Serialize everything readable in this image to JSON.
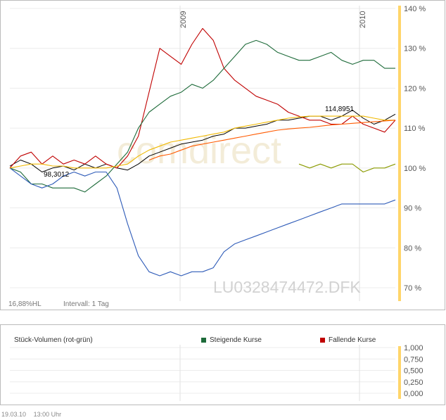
{
  "chart_data": [
    {
      "type": "line",
      "title": "",
      "x_labels": [
        "2009",
        "2010"
      ],
      "y_ticks": [
        "140 %",
        "130 %",
        "120 %",
        "110 %",
        "100 %",
        "90 %",
        "80 %",
        "70 %"
      ],
      "ylim": [
        67,
        140
      ],
      "grid": true,
      "symbol": "LU0328474472.DFK",
      "watermark": "comdirect",
      "range_label": "16,88%HL",
      "interval_label": "Intervall: 1 Tag",
      "annotations": {
        "high": "114,8951",
        "low": "98,3012"
      },
      "x": [
        0,
        15,
        30,
        45,
        60,
        75,
        90,
        105,
        120,
        135,
        150,
        165,
        180,
        195,
        210,
        225,
        240,
        255,
        270,
        285,
        300,
        315,
        330,
        345,
        360,
        375,
        390,
        405,
        420,
        435,
        450,
        465,
        480,
        495,
        510,
        525,
        540
      ],
      "series": [
        {
          "color": "#000000",
          "values": [
            100.5,
            102,
            101,
            99,
            100,
            100.5,
            99.5,
            101,
            100,
            101,
            100,
            99.5,
            101,
            103,
            104,
            105,
            106,
            106.5,
            107,
            108,
            108.5,
            110,
            110,
            110.5,
            111,
            112,
            112,
            112.5,
            113,
            113,
            112,
            113,
            114.5,
            112.5,
            111,
            112,
            113.5
          ]
        },
        {
          "color": "#c00000",
          "values": [
            100,
            103,
            104,
            101,
            103,
            101,
            102,
            101,
            103,
            101,
            100,
            103,
            108,
            119,
            130,
            128,
            126,
            131,
            135,
            132,
            125,
            122,
            120,
            118,
            117,
            116,
            114,
            113,
            112,
            112,
            111,
            111,
            113,
            111,
            110,
            109,
            112
          ]
        },
        {
          "color": "#1e6b3a",
          "values": [
            100,
            99,
            96,
            96,
            95,
            95,
            95,
            94,
            96,
            98,
            101,
            104,
            110,
            114,
            116,
            118,
            119,
            121,
            120,
            122,
            125,
            128,
            131,
            132,
            131,
            129,
            128,
            127,
            127,
            128,
            129,
            127,
            126,
            127,
            127,
            125,
            125
          ]
        },
        {
          "color": "#2e5bb8",
          "values": [
            100,
            98,
            96,
            95,
            96,
            98,
            99,
            98,
            99,
            99,
            95,
            86,
            78,
            74,
            73,
            74,
            73,
            74,
            74,
            75,
            79,
            81,
            82,
            83,
            84,
            85,
            86,
            87,
            88,
            89,
            90,
            91,
            91,
            91,
            91,
            91,
            92
          ]
        },
        {
          "color": "#f0b800",
          "values": [
            100,
            100.5,
            101,
            101,
            100.5,
            100.5,
            100,
            100,
            100,
            100,
            100.5,
            101,
            103,
            104.5,
            105.5,
            106.5,
            107,
            107.5,
            108,
            108.5,
            109,
            110,
            110.5,
            111,
            111.5,
            112,
            112.5,
            112.8,
            113,
            113,
            113,
            113,
            113,
            113,
            112.5,
            112,
            112
          ]
        },
        {
          "color": "#ff5a00",
          "values": [
            null,
            null,
            null,
            null,
            null,
            null,
            null,
            null,
            null,
            null,
            null,
            null,
            null,
            102,
            103,
            103.5,
            104.5,
            105.5,
            106,
            106.5,
            107,
            107.5,
            108,
            108.5,
            109,
            109.5,
            109.8,
            110,
            110.2,
            110.5,
            110.8,
            111,
            111.2,
            111.4,
            111.6,
            111.8,
            112
          ]
        },
        {
          "color": "#8a9a00",
          "values": [
            null,
            null,
            null,
            null,
            null,
            null,
            null,
            null,
            null,
            null,
            null,
            null,
            null,
            null,
            null,
            null,
            null,
            null,
            null,
            null,
            null,
            null,
            null,
            null,
            null,
            null,
            null,
            101,
            100,
            101,
            100,
            101,
            101,
            99,
            100,
            100,
            101
          ]
        }
      ]
    },
    {
      "type": "bar",
      "title": "Stück-Volumen (rot-grün)",
      "y_ticks": [
        "1,000",
        "0,750",
        "0,500",
        "0,250",
        "0,000"
      ],
      "ylim": [
        0,
        1
      ],
      "grid": true,
      "series": [
        {
          "name": "Steigende Kurse",
          "color": "#1e6b3a",
          "values": []
        },
        {
          "name": "Fallende Kurse",
          "color": "#c00000",
          "values": []
        }
      ]
    }
  ],
  "footer": {
    "date": "19.03.10",
    "time": "13:00 Uhr"
  }
}
